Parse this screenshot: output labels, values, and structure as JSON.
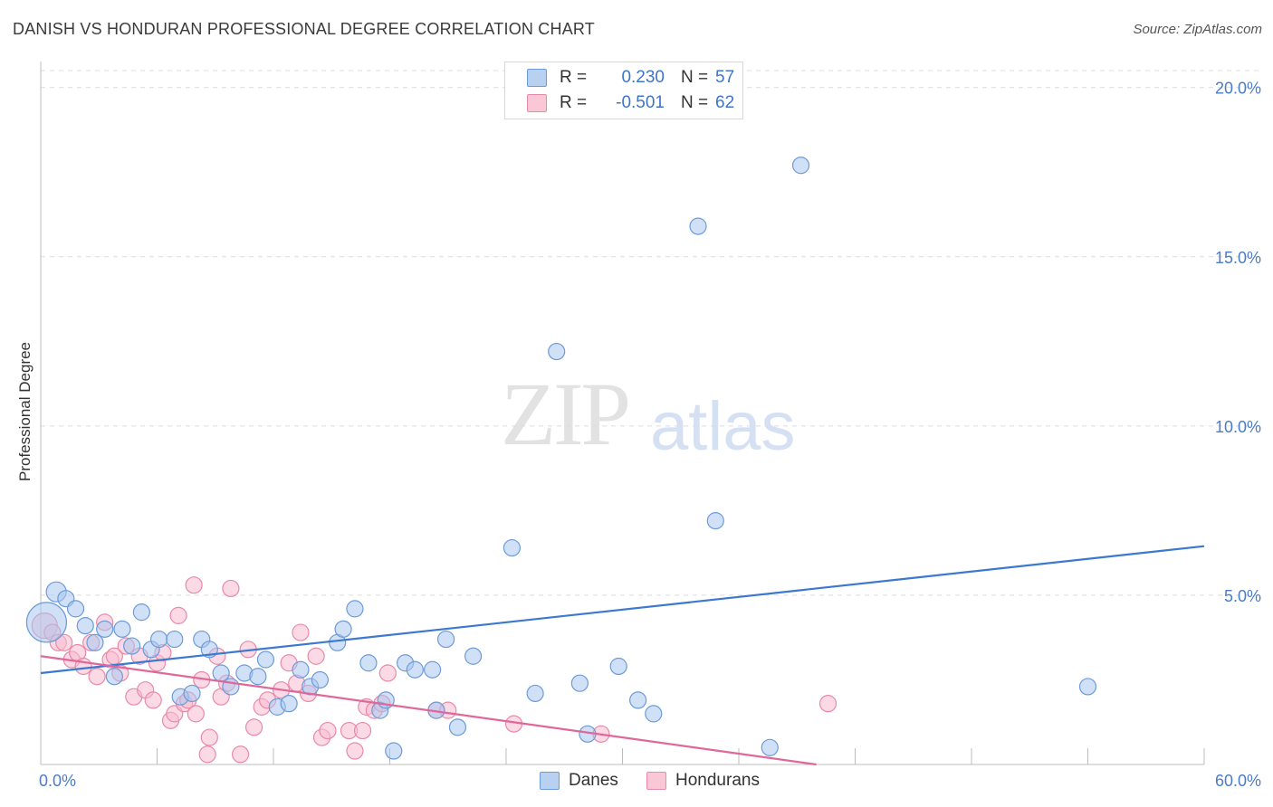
{
  "header": {
    "title": "DANISH VS HONDURAN PROFESSIONAL DEGREE CORRELATION CHART",
    "source": "Source: ZipAtlas.com"
  },
  "watermark": {
    "zip": "ZIP",
    "atlas": "atlas"
  },
  "legend_top": {
    "rows": [
      {
        "r_label": "R =",
        "r_value": "0.230",
        "n_label": "N =",
        "n_value": "57"
      },
      {
        "r_label": "R =",
        "r_value": "-0.501",
        "n_label": "N =",
        "n_value": "62"
      }
    ]
  },
  "legend_bottom": {
    "danes": "Danes",
    "hondurans": "Hondurans"
  },
  "chart_data": {
    "type": "scatter",
    "title": "DANISH VS HONDURAN PROFESSIONAL DEGREE CORRELATION CHART",
    "xlabel": "",
    "ylabel": "Professional Degree",
    "xlim": [
      0,
      60
    ],
    "ylim": [
      0,
      20.5
    ],
    "x_tick_labels": {
      "min": "0.0%",
      "max": "60.0%"
    },
    "y_ticks": [
      {
        "value": 5,
        "label": "5.0%"
      },
      {
        "value": 10,
        "label": "10.0%"
      },
      {
        "value": 15,
        "label": "15.0%"
      },
      {
        "value": 20,
        "label": "20.0%"
      }
    ],
    "grid": true,
    "colors": {
      "danes_fill": "#a9c7ee",
      "danes_stroke": "#6d9bd8",
      "danes_line": "#3b78cf",
      "hondurans_fill": "#f7bccf",
      "hondurans_stroke": "#e88aa8",
      "hondurans_line": "#e0679a"
    },
    "series": [
      {
        "name": "Danes",
        "trend": {
          "x0": 0,
          "y0": 2.7,
          "x1": 60,
          "y1": 6.45
        },
        "points": [
          [
            0.3,
            4.2,
            22
          ],
          [
            0.8,
            5.1,
            11
          ],
          [
            1.3,
            4.9,
            9
          ],
          [
            1.8,
            4.6,
            9
          ],
          [
            2.3,
            4.1,
            9
          ],
          [
            2.8,
            3.6,
            9
          ],
          [
            3.3,
            4.0,
            9
          ],
          [
            3.8,
            2.6,
            9
          ],
          [
            4.2,
            4.0,
            9
          ],
          [
            4.7,
            3.5,
            9
          ],
          [
            5.2,
            4.5,
            9
          ],
          [
            5.7,
            3.4,
            9
          ],
          [
            6.1,
            3.7,
            9
          ],
          [
            6.9,
            3.7,
            9
          ],
          [
            7.2,
            2.0,
            9
          ],
          [
            7.8,
            2.1,
            9
          ],
          [
            8.3,
            3.7,
            9
          ],
          [
            8.7,
            3.4,
            9
          ],
          [
            9.3,
            2.7,
            9
          ],
          [
            9.8,
            2.3,
            9
          ],
          [
            10.5,
            2.7,
            9
          ],
          [
            11.2,
            2.6,
            9
          ],
          [
            11.6,
            3.1,
            9
          ],
          [
            12.2,
            1.7,
            9
          ],
          [
            12.8,
            1.8,
            9
          ],
          [
            13.4,
            2.8,
            9
          ],
          [
            13.9,
            2.3,
            9
          ],
          [
            14.4,
            2.5,
            9
          ],
          [
            15.3,
            3.6,
            9
          ],
          [
            15.6,
            4.0,
            9
          ],
          [
            16.2,
            4.6,
            9
          ],
          [
            16.9,
            3.0,
            9
          ],
          [
            17.5,
            1.6,
            9
          ],
          [
            17.8,
            1.9,
            9
          ],
          [
            18.2,
            0.4,
            9
          ],
          [
            18.8,
            3.0,
            9
          ],
          [
            19.3,
            2.8,
            9
          ],
          [
            20.2,
            2.8,
            9
          ],
          [
            20.4,
            1.6,
            9
          ],
          [
            20.9,
            3.7,
            9
          ],
          [
            21.5,
            1.1,
            9
          ],
          [
            22.3,
            3.2,
            9
          ],
          [
            24.3,
            6.4,
            9
          ],
          [
            25.5,
            2.1,
            9
          ],
          [
            26.6,
            12.2,
            9
          ],
          [
            27.8,
            2.4,
            9
          ],
          [
            28.2,
            0.9,
            9
          ],
          [
            29.8,
            2.9,
            9
          ],
          [
            30.8,
            1.9,
            9
          ],
          [
            31.6,
            1.5,
            9
          ],
          [
            33.9,
            15.9,
            9
          ],
          [
            34.8,
            7.2,
            9
          ],
          [
            37.6,
            0.5,
            9
          ],
          [
            39.2,
            17.7,
            9
          ],
          [
            54.0,
            2.3,
            9
          ]
        ]
      },
      {
        "name": "Hondurans",
        "trend": {
          "x0": 0,
          "y0": 3.2,
          "x1": 40,
          "y1": 0.0
        },
        "points": [
          [
            0.2,
            4.1,
            14
          ],
          [
            0.6,
            3.9,
            9
          ],
          [
            0.9,
            3.6,
            9
          ],
          [
            1.2,
            3.6,
            9
          ],
          [
            1.6,
            3.1,
            9
          ],
          [
            1.9,
            3.3,
            9
          ],
          [
            2.2,
            2.9,
            9
          ],
          [
            2.6,
            3.6,
            9
          ],
          [
            2.9,
            2.6,
            9
          ],
          [
            3.3,
            4.2,
            9
          ],
          [
            3.6,
            3.1,
            9
          ],
          [
            3.8,
            3.2,
            9
          ],
          [
            4.1,
            2.7,
            9
          ],
          [
            4.4,
            3.5,
            9
          ],
          [
            4.8,
            2.0,
            9
          ],
          [
            5.1,
            3.2,
            9
          ],
          [
            5.4,
            2.2,
            9
          ],
          [
            5.8,
            1.9,
            9
          ],
          [
            6.0,
            3.0,
            9
          ],
          [
            6.3,
            3.3,
            9
          ],
          [
            6.7,
            1.3,
            9
          ],
          [
            6.9,
            1.5,
            9
          ],
          [
            7.1,
            4.4,
            9
          ],
          [
            7.4,
            1.8,
            9
          ],
          [
            7.6,
            1.9,
            9
          ],
          [
            7.9,
            5.3,
            9
          ],
          [
            8.0,
            1.5,
            9
          ],
          [
            8.3,
            2.5,
            9
          ],
          [
            8.6,
            0.3,
            9
          ],
          [
            8.7,
            0.8,
            9
          ],
          [
            9.1,
            3.2,
            9
          ],
          [
            9.3,
            2.0,
            9
          ],
          [
            9.6,
            2.4,
            9
          ],
          [
            9.8,
            5.2,
            9
          ],
          [
            10.3,
            0.3,
            9
          ],
          [
            10.7,
            3.4,
            9
          ],
          [
            11.0,
            1.1,
            9
          ],
          [
            11.4,
            1.7,
            9
          ],
          [
            11.7,
            1.9,
            9
          ],
          [
            12.4,
            2.2,
            9
          ],
          [
            12.8,
            3.0,
            9
          ],
          [
            13.2,
            2.4,
            9
          ],
          [
            13.4,
            3.9,
            9
          ],
          [
            13.8,
            2.1,
            9
          ],
          [
            14.2,
            3.2,
            9
          ],
          [
            14.5,
            0.8,
            9
          ],
          [
            14.8,
            1.0,
            9
          ],
          [
            15.9,
            1.0,
            9
          ],
          [
            16.2,
            0.4,
            9
          ],
          [
            16.6,
            1.0,
            9
          ],
          [
            16.8,
            1.7,
            9
          ],
          [
            17.2,
            1.6,
            9
          ],
          [
            17.6,
            1.8,
            9
          ],
          [
            17.9,
            2.7,
            9
          ],
          [
            20.4,
            1.6,
            9
          ],
          [
            21.0,
            1.6,
            9
          ],
          [
            24.4,
            1.2,
            9
          ],
          [
            28.9,
            0.9,
            9
          ],
          [
            40.6,
            1.8,
            9
          ]
        ]
      }
    ]
  }
}
